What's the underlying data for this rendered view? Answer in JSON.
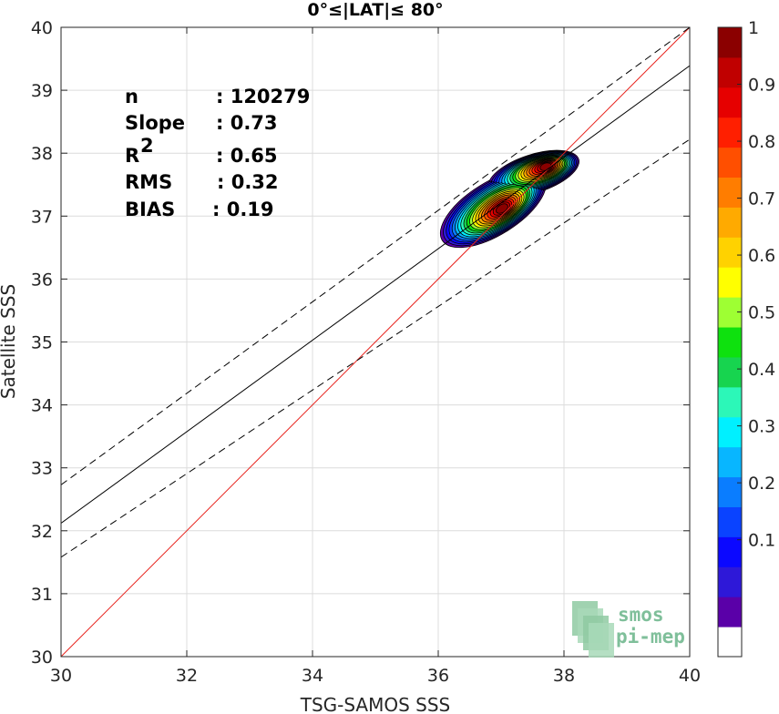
{
  "chart_data": {
    "type": "scatter",
    "title": "0°≤|LAT|≤ 80°",
    "xlabel": "TSG-SAMOS SSS",
    "ylabel": "Satellite SSS",
    "xlim": [
      30,
      40
    ],
    "ylim": [
      30,
      40
    ],
    "xticks": [
      "30",
      "32",
      "34",
      "36",
      "38",
      "40"
    ],
    "yticks": [
      "30",
      "31",
      "32",
      "33",
      "34",
      "35",
      "36",
      "37",
      "38",
      "39",
      "40"
    ],
    "grid": true,
    "stats": [
      {
        "label": "n",
        "value": ": 120279"
      },
      {
        "label": "Slope",
        "value": ": 0.73"
      },
      {
        "label": "R",
        "sup": "2",
        "value": ": 0.65"
      },
      {
        "label": "RMS",
        "value": ": 0.32"
      },
      {
        "label": "BIAS",
        "value": ": 0.19"
      }
    ],
    "identity_line": {
      "x": [
        30,
        40
      ],
      "y": [
        30,
        40
      ],
      "color": "#e8221c"
    },
    "regression_line": {
      "x": [
        30,
        40
      ],
      "y": [
        32.12,
        39.39
      ],
      "color": "#000000"
    },
    "confidence_upper": {
      "x": [
        30,
        40
      ],
      "y": [
        32.73,
        40.0
      ],
      "style": "dashed"
    },
    "confidence_lower": {
      "x": [
        30,
        40
      ],
      "y": [
        31.58,
        38.22
      ],
      "style": "dashed"
    },
    "density_peaks": [
      {
        "x": 37.02,
        "y": 37.12
      },
      {
        "x": 37.72,
        "y": 37.79
      }
    ],
    "colorbar": {
      "range": [
        0,
        1
      ],
      "tick_labels": [
        "0.1",
        "0.2",
        "0.3",
        "0.4",
        "0.5",
        "0.6",
        "0.7",
        "0.8",
        "0.9",
        "1"
      ],
      "colors": [
        "#ffffff",
        "#5a00a8",
        "#2e18d8",
        "#0b08ff",
        "#0a43ff",
        "#0a7dff",
        "#08b6ff",
        "#00f0ff",
        "#2cf7b8",
        "#17d44f",
        "#0ee10e",
        "#9eff33",
        "#ffff00",
        "#ffd200",
        "#ffaa00",
        "#ff7d00",
        "#ff4f00",
        "#ff1f00",
        "#e60000",
        "#c00000",
        "#8b0000"
      ]
    },
    "logo": {
      "line1": "smos",
      "line2": "pi-mep"
    }
  }
}
